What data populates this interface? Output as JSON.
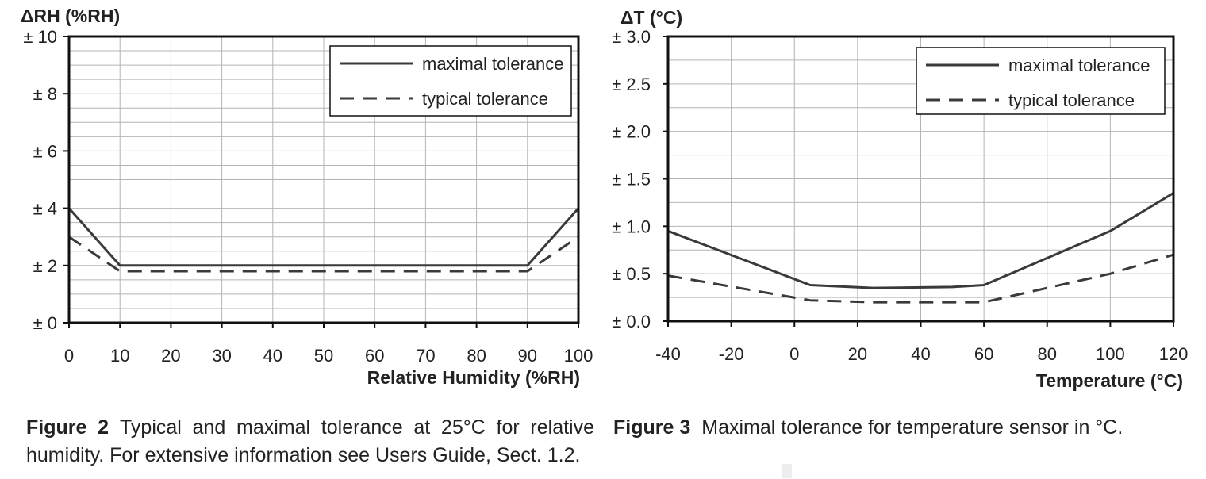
{
  "chart_data": [
    {
      "type": "line",
      "ylabel": "ΔRH (%RH)",
      "xlabel": "Relative Humidity (%RH)",
      "xlim": [
        0,
        100
      ],
      "ylim": [
        0,
        10
      ],
      "grid": true,
      "x_ticks": [
        "0",
        "10",
        "20",
        "30",
        "40",
        "50",
        "60",
        "70",
        "80",
        "90",
        "100"
      ],
      "y_ticks": [
        "± 0",
        "± 2",
        "± 4",
        "± 6",
        "± 8",
        "± 10"
      ],
      "legend_position": "top-right",
      "series": [
        {
          "name": "maximal tolerance",
          "style": "solid",
          "x": [
            0,
            10,
            90,
            100
          ],
          "values": [
            4,
            2,
            2,
            4
          ]
        },
        {
          "name": "typical tolerance",
          "style": "dashed",
          "x": [
            0,
            10,
            90,
            100
          ],
          "values": [
            3,
            1.8,
            1.8,
            3
          ]
        }
      ]
    },
    {
      "type": "line",
      "ylabel": "ΔT (°C)",
      "xlabel": "Temperature (°C)",
      "xlim": [
        -40,
        120
      ],
      "ylim": [
        0,
        3
      ],
      "grid": true,
      "x_ticks": [
        "-40",
        "-20",
        "0",
        "20",
        "40",
        "60",
        "80",
        "100",
        "120"
      ],
      "y_ticks": [
        "± 0.0",
        "± 0.5",
        "± 1.0",
        "± 1.5",
        "± 2.0",
        "± 2.5",
        "± 3.0"
      ],
      "legend_position": "top-right",
      "series": [
        {
          "name": "maximal tolerance",
          "style": "solid",
          "x": [
            -40,
            5,
            25,
            50,
            60,
            100,
            120
          ],
          "values": [
            0.95,
            0.38,
            0.35,
            0.36,
            0.38,
            0.95,
            1.35
          ]
        },
        {
          "name": "typical tolerance",
          "style": "dashed",
          "x": [
            -40,
            5,
            25,
            50,
            60,
            100,
            120
          ],
          "values": [
            0.48,
            0.22,
            0.2,
            0.2,
            0.2,
            0.5,
            0.7
          ]
        }
      ]
    }
  ],
  "captions": {
    "fig2": {
      "label": "Figure 2",
      "text": "Typical and maximal tolerance at 25°C for relative humidity. For extensive information see Users Guide, Sect. 1.2."
    },
    "fig3": {
      "label": "Figure 3",
      "text": "Maximal tolerance for temperature sensor in °C."
    }
  },
  "colors": {
    "line": "#3a3a3a",
    "grid": "#b4b4b4",
    "frame": "#111111"
  }
}
